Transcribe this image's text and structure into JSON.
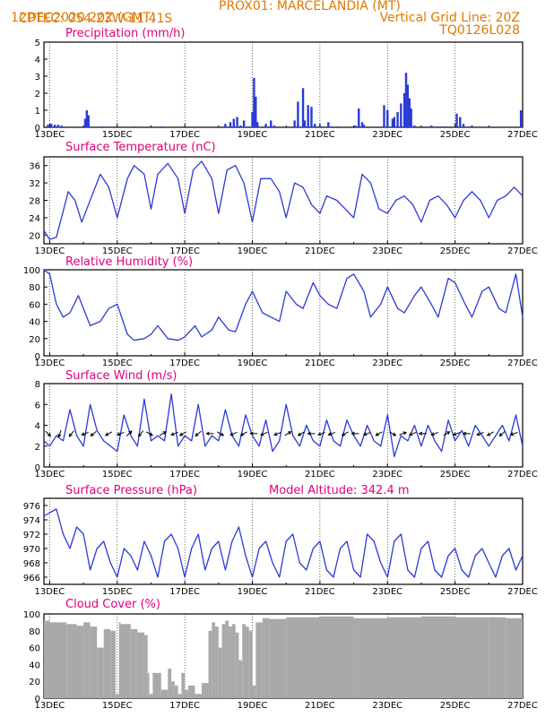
{
  "header": {
    "source": "CPTEC:",
    "location": "054:23W-11:41S",
    "station": "PROX01: MARCELANDIA (MT)",
    "init_time": "12DEC2020 20Z (GMT)",
    "grid_note": "Vertical Grid Line: 20Z",
    "model_code": "TQ0126L028"
  },
  "colors": {
    "header": "#e07800",
    "title": "#e0007a",
    "series": "#2a3bd6",
    "cloud": "#a9a9a9",
    "arrow": "#000000"
  },
  "date_ticks": [
    "13DEC",
    "15DEC",
    "17DEC",
    "19DEC",
    "21DEC",
    "23DEC",
    "25DEC",
    "27DEC"
  ],
  "chart_data": [
    {
      "id": "precip",
      "type": "bar",
      "title": "Precipitation (mm/h)",
      "y_ticks": [
        "0",
        "1",
        "2",
        "3",
        "4",
        "5"
      ],
      "ylim": [
        0,
        5
      ],
      "x_range_days": [
        12.83,
        27.0
      ],
      "x_day": [
        12.95,
        13.05,
        13.15,
        13.25,
        13.35,
        14.05,
        14.1,
        14.15,
        14.55,
        15.5,
        16.3,
        18.2,
        18.35,
        18.45,
        18.55,
        18.65,
        18.75,
        19.0,
        19.05,
        19.1,
        19.15,
        19.4,
        19.55,
        19.65,
        20.25,
        20.35,
        20.5,
        20.55,
        20.65,
        20.75,
        20.85,
        21.0,
        21.25,
        21.35,
        21.5,
        22.05,
        22.15,
        22.25,
        22.3,
        22.9,
        23.0,
        23.15,
        23.2,
        23.3,
        23.4,
        23.5,
        23.55,
        23.6,
        23.65,
        23.7,
        23.8,
        24.3,
        24.6,
        24.7,
        25.05,
        25.15,
        25.25,
        25.5,
        26.0,
        26.95
      ],
      "y_values": [
        0.15,
        0.2,
        0.15,
        0.15,
        0.1,
        0.5,
        1.0,
        0.7,
        0.05,
        0.05,
        0.05,
        0.2,
        0.3,
        0.5,
        0.6,
        0.1,
        0.4,
        0.9,
        2.9,
        1.8,
        0.3,
        0.2,
        0.4,
        0.1,
        0.4,
        1.5,
        2.3,
        0.4,
        1.3,
        1.2,
        0.2,
        0.1,
        0.3,
        0.05,
        0.05,
        0.1,
        1.1,
        0.3,
        0.15,
        1.3,
        1.0,
        0.5,
        0.6,
        0.9,
        1.4,
        2.0,
        3.2,
        2.5,
        1.7,
        1.1,
        0.1,
        0.1,
        0.05,
        0.05,
        0.8,
        0.6,
        0.2,
        0.1,
        0.05,
        1.0
      ]
    },
    {
      "id": "temp",
      "type": "line",
      "title": "Surface Temperature (nC)",
      "y_ticks": [
        "20",
        "24",
        "28",
        "32",
        "36"
      ],
      "ylim": [
        18,
        38
      ],
      "x_range_days": [
        12.83,
        27.0
      ],
      "x_day": [
        12.83,
        13.0,
        13.2,
        13.35,
        13.55,
        13.75,
        13.95,
        14.15,
        14.5,
        14.75,
        15.0,
        15.3,
        15.5,
        15.8,
        16.0,
        16.2,
        16.5,
        16.8,
        17.0,
        17.25,
        17.5,
        17.8,
        18.0,
        18.25,
        18.5,
        18.75,
        19.0,
        19.25,
        19.55,
        19.8,
        20.0,
        20.25,
        20.5,
        20.75,
        21.0,
        21.2,
        21.5,
        21.75,
        22.0,
        22.25,
        22.5,
        22.75,
        23.0,
        23.25,
        23.5,
        23.75,
        24.0,
        24.25,
        24.5,
        24.75,
        25.0,
        25.25,
        25.5,
        25.75,
        26.0,
        26.25,
        26.5,
        26.75,
        27.0
      ],
      "y_values": [
        21,
        19,
        19.5,
        24,
        30,
        28,
        23,
        27,
        34,
        31,
        24,
        33,
        36,
        34,
        26,
        34,
        36.5,
        33,
        25,
        35,
        37,
        33,
        25,
        35,
        36,
        32,
        23,
        33,
        33,
        30,
        24,
        32,
        31,
        27,
        25,
        29,
        28,
        26,
        24,
        34,
        32,
        26,
        25,
        28,
        29,
        27,
        23,
        28,
        29,
        27,
        24,
        28,
        30,
        28,
        24,
        28,
        29,
        31,
        29
      ]
    },
    {
      "id": "rh",
      "type": "line",
      "title": "Relative Humidity (%)",
      "y_ticks": [
        "0",
        "20",
        "40",
        "60",
        "80",
        "100"
      ],
      "ylim": [
        0,
        100
      ],
      "x_range_days": [
        12.83,
        27.0
      ],
      "x_day": [
        12.83,
        13.0,
        13.2,
        13.4,
        13.6,
        13.85,
        14.0,
        14.2,
        14.5,
        14.75,
        15.0,
        15.3,
        15.5,
        15.8,
        16.0,
        16.2,
        16.5,
        16.8,
        17.0,
        17.3,
        17.5,
        17.8,
        18.0,
        18.3,
        18.5,
        18.8,
        19.0,
        19.3,
        19.55,
        19.8,
        20.0,
        20.3,
        20.5,
        20.8,
        21.0,
        21.25,
        21.5,
        21.8,
        22.0,
        22.3,
        22.5,
        22.8,
        23.0,
        23.3,
        23.5,
        23.8,
        24.0,
        24.3,
        24.5,
        24.8,
        25.0,
        25.3,
        25.5,
        25.8,
        26.0,
        26.3,
        26.5,
        26.8,
        27.0
      ],
      "y_values": [
        100,
        95,
        60,
        45,
        50,
        70,
        55,
        35,
        40,
        55,
        60,
        25,
        18,
        20,
        25,
        35,
        20,
        18,
        22,
        35,
        22,
        30,
        45,
        30,
        28,
        60,
        75,
        50,
        45,
        40,
        75,
        60,
        55,
        85,
        70,
        60,
        55,
        90,
        95,
        75,
        45,
        60,
        80,
        55,
        50,
        70,
        80,
        60,
        45,
        90,
        85,
        60,
        45,
        75,
        80,
        55,
        50,
        95,
        45
      ]
    },
    {
      "id": "wind",
      "type": "line",
      "title": "Surface Wind (m/s)",
      "y_ticks": [
        "0",
        "2",
        "4",
        "6",
        "8"
      ],
      "ylim": [
        0,
        8
      ],
      "x_range_days": [
        12.83,
        27.0
      ],
      "x_day": [
        12.83,
        13.0,
        13.2,
        13.4,
        13.6,
        13.8,
        14.0,
        14.2,
        14.4,
        14.6,
        14.8,
        15.0,
        15.2,
        15.4,
        15.6,
        15.8,
        16.0,
        16.2,
        16.4,
        16.6,
        16.8,
        17.0,
        17.2,
        17.4,
        17.6,
        17.8,
        18.0,
        18.2,
        18.4,
        18.6,
        18.8,
        19.0,
        19.2,
        19.4,
        19.6,
        19.8,
        20.0,
        20.2,
        20.4,
        20.6,
        20.8,
        21.0,
        21.2,
        21.4,
        21.6,
        21.8,
        22.0,
        22.2,
        22.4,
        22.6,
        22.8,
        23.0,
        23.2,
        23.4,
        23.6,
        23.8,
        24.0,
        24.2,
        24.4,
        24.6,
        24.8,
        25.0,
        25.2,
        25.4,
        25.6,
        25.8,
        26.0,
        26.2,
        26.4,
        26.6,
        26.8,
        27.0
      ],
      "y_values": [
        2.5,
        2.0,
        3.0,
        2.5,
        5.5,
        3.0,
        2.0,
        6.0,
        3.5,
        2.5,
        2.0,
        1.5,
        5.0,
        3.0,
        2.0,
        6.5,
        2.5,
        3.0,
        2.5,
        7.0,
        2.0,
        3.0,
        2.5,
        6.0,
        2.0,
        3.0,
        2.5,
        5.5,
        3.0,
        2.0,
        5.0,
        3.0,
        2.0,
        4.5,
        1.5,
        2.5,
        6.0,
        3.0,
        2.0,
        4.0,
        2.5,
        2.0,
        4.5,
        2.5,
        2.0,
        4.5,
        3.0,
        2.0,
        4.0,
        2.5,
        2.0,
        5.0,
        1.0,
        3.0,
        2.5,
        4.0,
        2.0,
        4.0,
        2.5,
        1.5,
        4.5,
        2.5,
        3.5,
        2.0,
        4.0,
        3.0,
        2.0,
        3.0,
        4.0,
        2.5,
        5.0,
        2.0
      ],
      "wind_barbs_x_day": [
        12.95,
        13.3,
        13.65,
        14.05,
        14.3,
        14.75,
        15.1,
        15.35,
        15.7,
        15.95,
        16.35,
        16.7,
        16.95,
        17.4,
        17.75,
        18.05,
        18.45,
        18.75,
        19.05,
        19.35,
        19.75,
        20.05,
        20.45,
        20.75,
        21.05,
        21.35,
        21.75,
        22.05,
        22.4,
        22.75,
        23.15,
        23.45,
        23.75,
        24.05,
        24.4,
        24.75,
        25.05,
        25.35,
        25.75,
        26.05,
        26.4,
        26.75
      ],
      "wind_barbs_deg": [
        315,
        250,
        230,
        200,
        220,
        210,
        200,
        45,
        230,
        330,
        30,
        200,
        210,
        220,
        180,
        330,
        200,
        210,
        180,
        200,
        200,
        30,
        210,
        180,
        200,
        200,
        210,
        180,
        200,
        210,
        330,
        20,
        200,
        180,
        200,
        30,
        200,
        180,
        200,
        210,
        220,
        200
      ]
    },
    {
      "id": "pressure",
      "type": "line",
      "title": "Surface Pressure (hPa)",
      "annotation": "Model Altitude: 342.4 m",
      "y_ticks": [
        "966",
        "968",
        "970",
        "972",
        "974",
        "976"
      ],
      "ylim": [
        965,
        977
      ],
      "x_range_days": [
        12.83,
        27.0
      ],
      "x_day": [
        12.83,
        13.0,
        13.2,
        13.4,
        13.6,
        13.8,
        14.0,
        14.2,
        14.4,
        14.6,
        14.8,
        15.0,
        15.2,
        15.4,
        15.6,
        15.8,
        16.0,
        16.2,
        16.4,
        16.6,
        16.8,
        17.0,
        17.2,
        17.4,
        17.6,
        17.8,
        18.0,
        18.2,
        18.4,
        18.6,
        18.8,
        19.0,
        19.2,
        19.4,
        19.6,
        19.8,
        20.0,
        20.2,
        20.4,
        20.6,
        20.8,
        21.0,
        21.2,
        21.4,
        21.6,
        21.8,
        22.0,
        22.2,
        22.4,
        22.6,
        22.8,
        23.0,
        23.2,
        23.4,
        23.6,
        23.8,
        24.0,
        24.2,
        24.4,
        24.6,
        24.8,
        25.0,
        25.2,
        25.4,
        25.6,
        25.8,
        26.0,
        26.2,
        26.4,
        26.6,
        26.8,
        27.0
      ],
      "y_values": [
        974.5,
        975,
        975.5,
        972,
        970,
        973,
        972,
        967,
        970,
        971,
        968,
        966,
        970,
        969,
        967,
        971,
        969,
        966,
        971,
        972,
        970,
        966,
        970,
        972,
        967,
        970,
        971,
        967,
        971,
        973,
        969,
        966,
        970,
        971,
        968,
        966,
        971,
        972,
        968,
        967,
        970,
        971,
        967,
        966,
        970,
        971,
        967,
        966,
        972,
        971,
        968,
        966,
        971,
        972,
        967,
        966,
        970,
        971,
        967,
        966,
        969,
        970,
        967,
        966,
        969,
        970,
        968,
        966,
        969,
        970,
        967,
        969
      ]
    },
    {
      "id": "cloud",
      "type": "area",
      "title": "Cloud Cover (%)",
      "y_ticks": [
        "0",
        "20",
        "40",
        "60",
        "80",
        "100"
      ],
      "ylim": [
        0,
        100
      ],
      "x_range_days": [
        12.83,
        27.0
      ],
      "x_day": [
        12.83,
        13.0,
        13.5,
        13.8,
        14.0,
        14.2,
        14.4,
        14.6,
        14.8,
        14.95,
        15.05,
        15.1,
        15.4,
        15.6,
        15.8,
        15.9,
        15.95,
        16.05,
        16.3,
        16.5,
        16.6,
        16.7,
        16.8,
        16.9,
        17.0,
        17.1,
        17.3,
        17.5,
        17.7,
        17.8,
        17.9,
        18.0,
        18.1,
        18.2,
        18.3,
        18.4,
        18.5,
        18.6,
        18.7,
        18.8,
        18.9,
        19.0,
        19.1,
        19.3,
        19.5,
        20.0,
        21.0,
        22.0,
        23.0,
        24.0,
        25.0,
        26.0,
        26.5,
        27.0
      ],
      "y_values": [
        92,
        90,
        88,
        86,
        90,
        85,
        60,
        82,
        80,
        5,
        90,
        88,
        82,
        78,
        75,
        30,
        5,
        30,
        10,
        35,
        20,
        15,
        5,
        30,
        10,
        15,
        5,
        18,
        80,
        90,
        85,
        60,
        88,
        92,
        85,
        88,
        78,
        45,
        88,
        85,
        80,
        15,
        90,
        95,
        94,
        96,
        97,
        95,
        96,
        97,
        96,
        96,
        95,
        97
      ]
    }
  ]
}
